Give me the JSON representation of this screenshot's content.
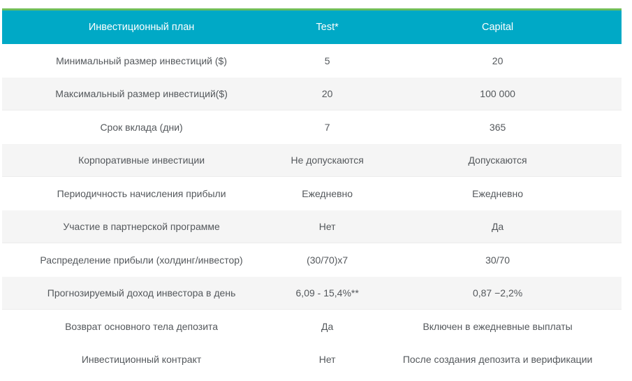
{
  "theme": {
    "page_bg": "#ffffff",
    "header_bg": "#00a9c6",
    "header_accent": "#6fbe58",
    "header_text": "#ffffff",
    "row_text": "#54585c",
    "stripe_bg": "#f5f5f5"
  },
  "table": {
    "headers": {
      "plan": "Инвестиционный план",
      "test": "Test*",
      "capital": "Capital"
    },
    "rows": [
      {
        "plan": "Минимальный размер инвестиций ($)",
        "test": "5",
        "capital": "20"
      },
      {
        "plan": "Максимальный размер инвестиций($)",
        "test": "20",
        "capital": "100 000"
      },
      {
        "plan": "Срок вклада (дни)",
        "test": "7",
        "capital": "365"
      },
      {
        "plan": "Корпоративные инвестиции",
        "test": "Не допускаются",
        "capital": "Допускаются"
      },
      {
        "plan": "Периодичность начисления прибыли",
        "test": "Ежедневно",
        "capital": "Ежедневно"
      },
      {
        "plan": "Участие в партнерской программе",
        "test": "Нет",
        "capital": "Да"
      },
      {
        "plan": "Распределение прибыли (холдинг/инвестор)",
        "test": "(30/70)x7",
        "capital": "30/70"
      },
      {
        "plan": "Прогнозируемый доход инвестора в день",
        "test": "6,09 - 15,4%**",
        "capital": "0,87 −2,2%"
      },
      {
        "plan": "Возврат основного тела депозита",
        "test": "Да",
        "capital": "Включен в ежедневные выплаты"
      },
      {
        "plan": "Инвестиционный контракт",
        "test": "Нет",
        "capital": "После создания депозита и верификации"
      }
    ],
    "shaded_row_indices": [
      1,
      3,
      5,
      7
    ]
  }
}
